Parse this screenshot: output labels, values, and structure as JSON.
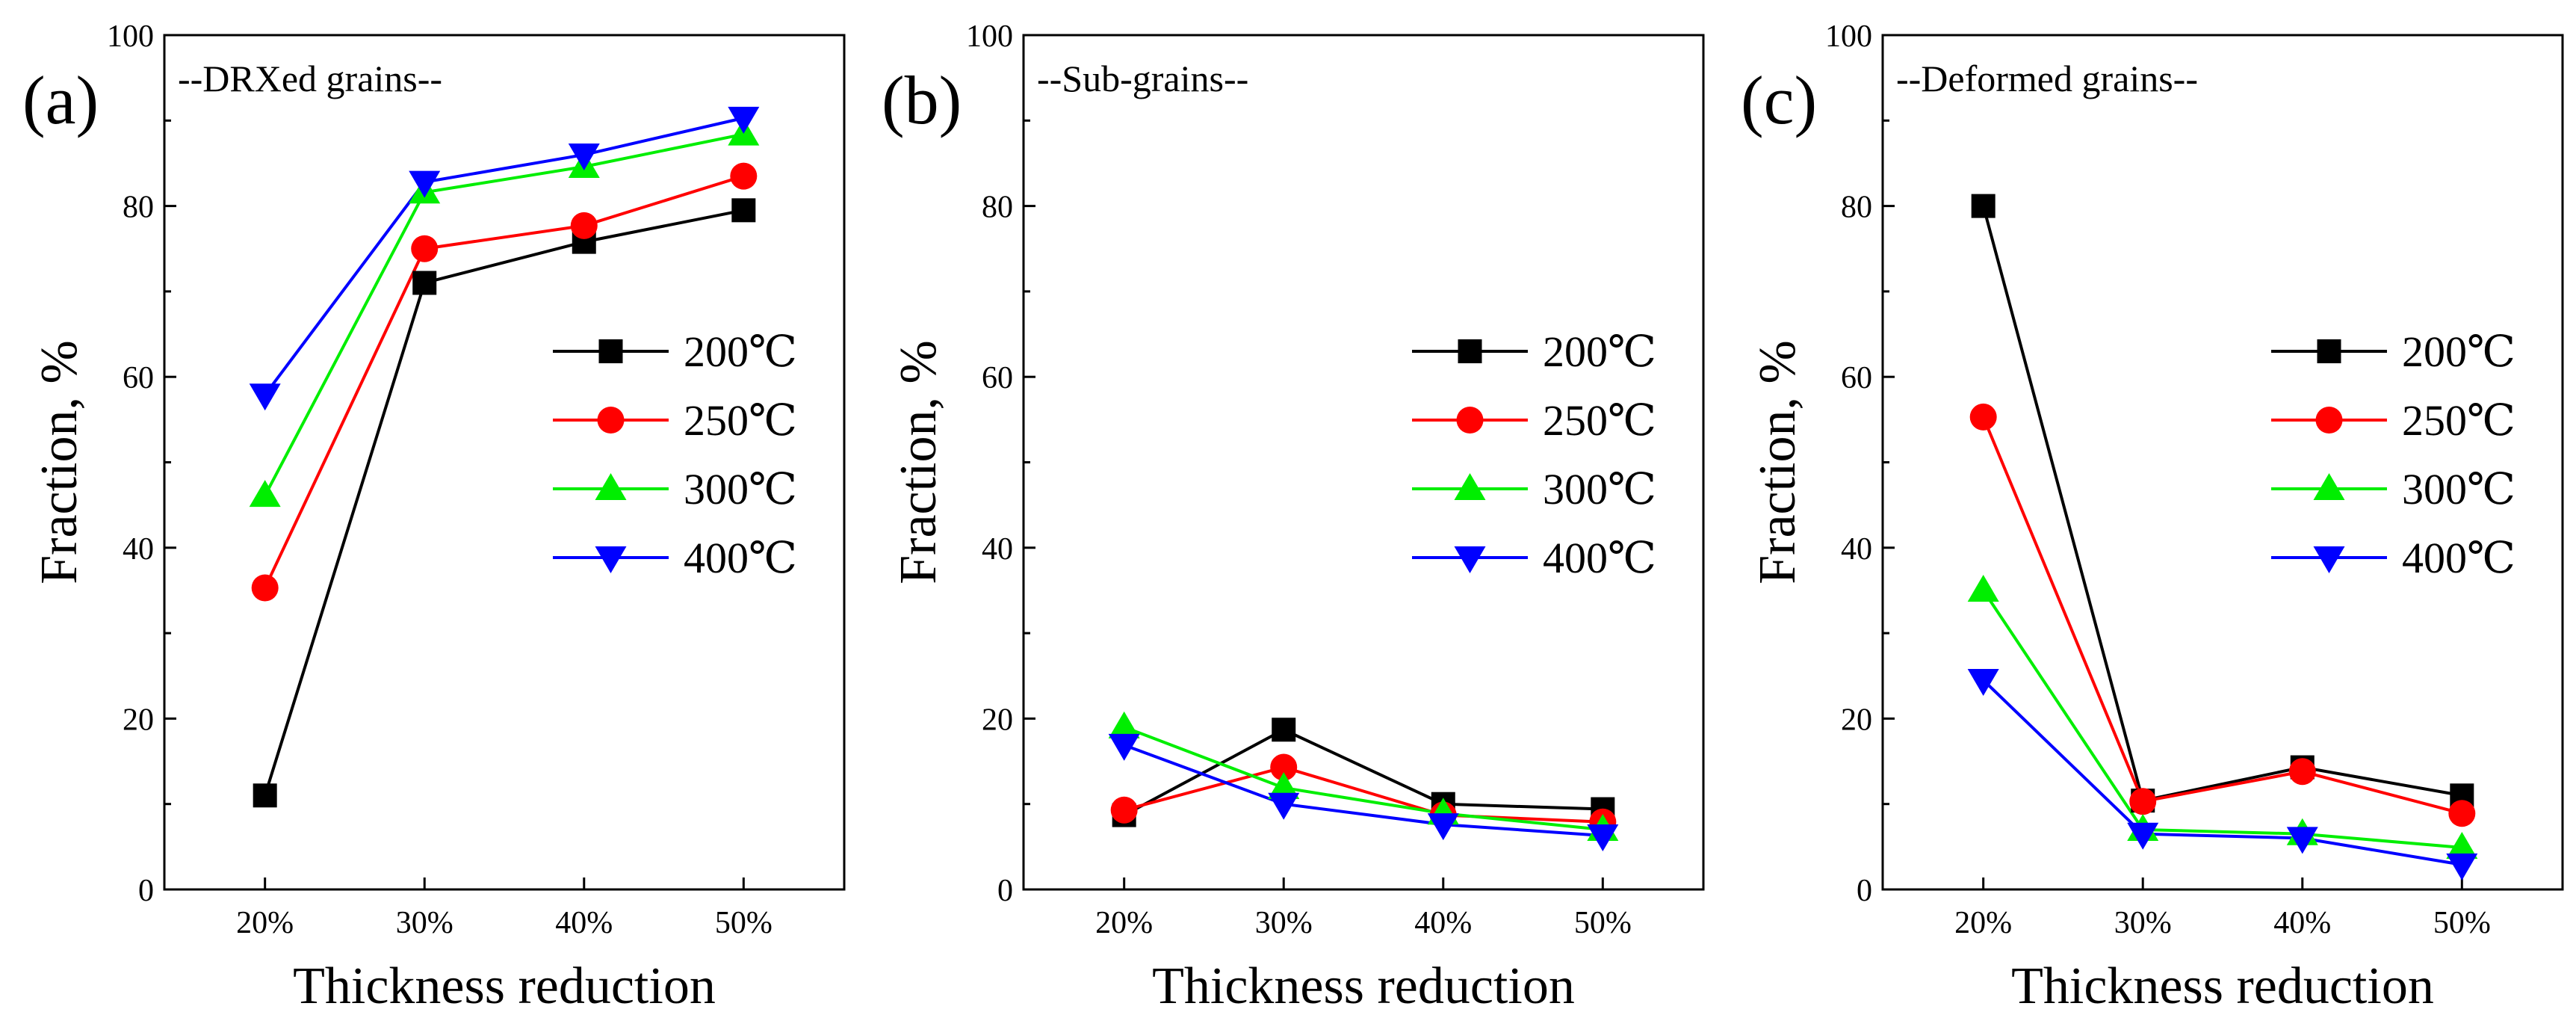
{
  "figure": {
    "panels": [
      {
        "label": "(a)",
        "annotation": "--DRXed grains--"
      },
      {
        "label": "(b)",
        "annotation": "--Sub-grains--"
      },
      {
        "label": "(c)",
        "annotation": "--Deformed grains--"
      }
    ]
  },
  "colors": {
    "200": "#000000",
    "250": "#ff0000",
    "300": "#00ee00",
    "400": "#0000ff"
  },
  "chart_data": [
    {
      "type": "line",
      "panel_label": "(a)",
      "title": "--DRXed grains--",
      "xlabel": "Thickness reduction",
      "ylabel": "Fraction, %",
      "categories": [
        "20%",
        "30%",
        "40%",
        "50%"
      ],
      "ylim": [
        0,
        100
      ],
      "yticks": [
        0,
        20,
        40,
        60,
        80,
        100
      ],
      "legend_position": "center-right",
      "series": [
        {
          "name": "200℃",
          "marker": "square",
          "color": "#000000",
          "values": [
            11.0,
            71.0,
            75.8,
            79.5
          ]
        },
        {
          "name": "250℃",
          "marker": "circle",
          "color": "#ff0000",
          "values": [
            35.3,
            75.0,
            77.7,
            83.5
          ]
        },
        {
          "name": "300℃",
          "marker": "triangle-up",
          "color": "#00ee00",
          "values": [
            46.1,
            81.6,
            84.6,
            88.4
          ]
        },
        {
          "name": "400℃",
          "marker": "triangle-down",
          "color": "#0000ff",
          "values": [
            57.9,
            82.8,
            86.0,
            90.3
          ]
        }
      ]
    },
    {
      "type": "line",
      "panel_label": "(b)",
      "title": "--Sub-grains--",
      "xlabel": "Thickness reduction",
      "ylabel": "Fraction, %",
      "categories": [
        "20%",
        "30%",
        "40%",
        "50%"
      ],
      "ylim": [
        0,
        100
      ],
      "yticks": [
        0,
        20,
        40,
        60,
        80,
        100
      ],
      "legend_position": "center-right",
      "series": [
        {
          "name": "200℃",
          "marker": "square",
          "color": "#000000",
          "values": [
            8.7,
            18.7,
            10.0,
            9.4
          ]
        },
        {
          "name": "250℃",
          "marker": "circle",
          "color": "#ff0000",
          "values": [
            9.3,
            14.3,
            8.7,
            7.9
          ]
        },
        {
          "name": "300℃",
          "marker": "triangle-up",
          "color": "#00ee00",
          "values": [
            19.0,
            11.9,
            8.9,
            7.0
          ]
        },
        {
          "name": "400℃",
          "marker": "triangle-down",
          "color": "#0000ff",
          "values": [
            16.9,
            10.0,
            7.6,
            6.3
          ]
        }
      ]
    },
    {
      "type": "line",
      "panel_label": "(c)",
      "title": "--Deformed grains--",
      "xlabel": "Thickness reduction",
      "ylabel": "Fraction, %",
      "categories": [
        "20%",
        "30%",
        "40%",
        "50%"
      ],
      "ylim": [
        0,
        100
      ],
      "yticks": [
        0,
        20,
        40,
        60,
        80,
        100
      ],
      "legend_position": "center-right",
      "series": [
        {
          "name": "200℃",
          "marker": "square",
          "color": "#000000",
          "values": [
            80.0,
            10.4,
            14.3,
            11.0
          ]
        },
        {
          "name": "250℃",
          "marker": "circle",
          "color": "#ff0000",
          "values": [
            55.3,
            10.3,
            13.8,
            8.9
          ]
        },
        {
          "name": "300℃",
          "marker": "triangle-up",
          "color": "#00ee00",
          "values": [
            35.0,
            7.0,
            6.5,
            4.9
          ]
        },
        {
          "name": "400℃",
          "marker": "triangle-down",
          "color": "#0000ff",
          "values": [
            24.5,
            6.5,
            6.0,
            2.9
          ]
        }
      ]
    }
  ]
}
